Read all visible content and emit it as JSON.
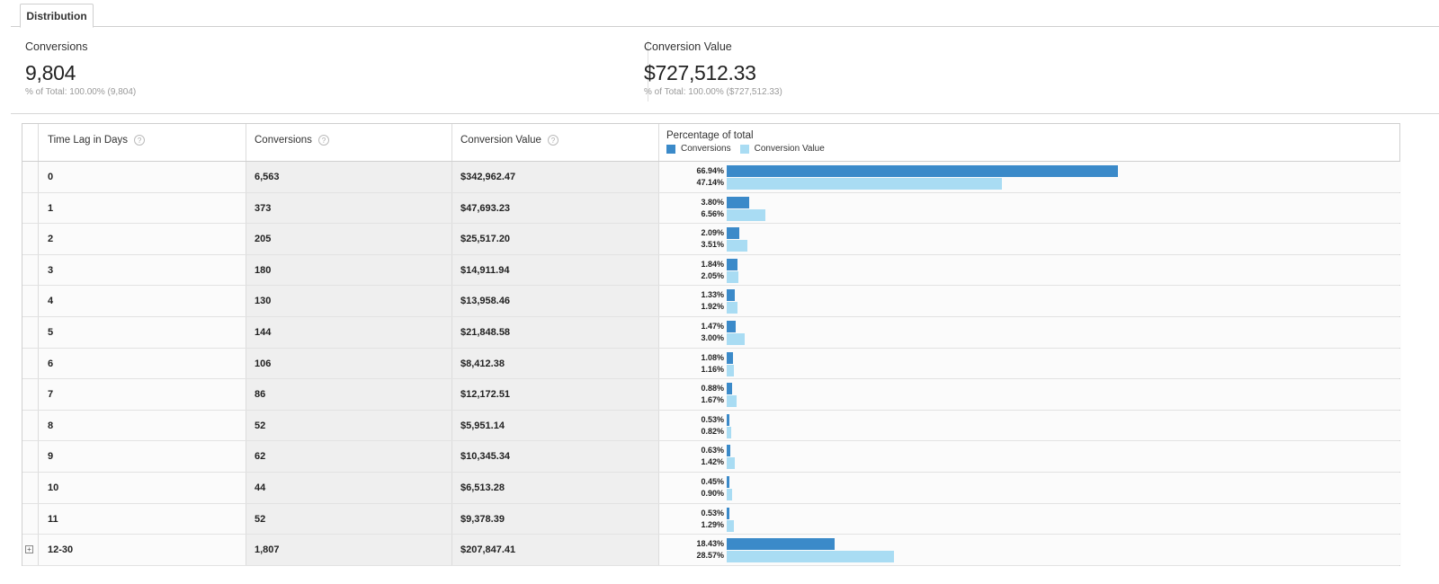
{
  "tabs": [
    {
      "label": "Distribution"
    }
  ],
  "summary": {
    "conversions": {
      "label": "Conversions",
      "value": "9,804",
      "sub": "% of Total: 100.00% (9,804)"
    },
    "conversion_value": {
      "label": "Conversion Value",
      "value": "$727,512.33",
      "sub": "% of Total: 100.00% ($727,512.33)"
    }
  },
  "table": {
    "headers": {
      "time_lag": "Time Lag in Days",
      "conversions": "Conversions",
      "conversion_value": "Conversion Value",
      "percentage": "Percentage of total",
      "legend_conversions": "Conversions",
      "legend_conversion_value": "Conversion Value",
      "help_glyph": "?"
    },
    "colors": {
      "conversions": "#3b8ac9",
      "conversion_value": "#a9dcf3"
    },
    "expand_glyph": "+",
    "rows": [
      {
        "lag": "0",
        "conversions": "6,563",
        "value": "$342,962.47",
        "pct_conv": "66.94%",
        "pct_val": "47.14%",
        "conv_pct": 66.94,
        "val_pct": 47.14
      },
      {
        "lag": "1",
        "conversions": "373",
        "value": "$47,693.23",
        "pct_conv": "3.80%",
        "pct_val": "6.56%",
        "conv_pct": 3.8,
        "val_pct": 6.56
      },
      {
        "lag": "2",
        "conversions": "205",
        "value": "$25,517.20",
        "pct_conv": "2.09%",
        "pct_val": "3.51%",
        "conv_pct": 2.09,
        "val_pct": 3.51
      },
      {
        "lag": "3",
        "conversions": "180",
        "value": "$14,911.94",
        "pct_conv": "1.84%",
        "pct_val": "2.05%",
        "conv_pct": 1.84,
        "val_pct": 2.05
      },
      {
        "lag": "4",
        "conversions": "130",
        "value": "$13,958.46",
        "pct_conv": "1.33%",
        "pct_val": "1.92%",
        "conv_pct": 1.33,
        "val_pct": 1.92
      },
      {
        "lag": "5",
        "conversions": "144",
        "value": "$21,848.58",
        "pct_conv": "1.47%",
        "pct_val": "3.00%",
        "conv_pct": 1.47,
        "val_pct": 3.0
      },
      {
        "lag": "6",
        "conversions": "106",
        "value": "$8,412.38",
        "pct_conv": "1.08%",
        "pct_val": "1.16%",
        "conv_pct": 1.08,
        "val_pct": 1.16
      },
      {
        "lag": "7",
        "conversions": "86",
        "value": "$12,172.51",
        "pct_conv": "0.88%",
        "pct_val": "1.67%",
        "conv_pct": 0.88,
        "val_pct": 1.67
      },
      {
        "lag": "8",
        "conversions": "52",
        "value": "$5,951.14",
        "pct_conv": "0.53%",
        "pct_val": "0.82%",
        "conv_pct": 0.53,
        "val_pct": 0.82
      },
      {
        "lag": "9",
        "conversions": "62",
        "value": "$10,345.34",
        "pct_conv": "0.63%",
        "pct_val": "1.42%",
        "conv_pct": 0.63,
        "val_pct": 1.42
      },
      {
        "lag": "10",
        "conversions": "44",
        "value": "$6,513.28",
        "pct_conv": "0.45%",
        "pct_val": "0.90%",
        "conv_pct": 0.45,
        "val_pct": 0.9
      },
      {
        "lag": "11",
        "conversions": "52",
        "value": "$9,378.39",
        "pct_conv": "0.53%",
        "pct_val": "1.29%",
        "conv_pct": 0.53,
        "val_pct": 1.29
      },
      {
        "lag": "12-30",
        "conversions": "1,807",
        "value": "$207,847.41",
        "pct_conv": "18.43%",
        "pct_val": "28.57%",
        "conv_pct": 18.43,
        "val_pct": 28.57,
        "expandable": true
      }
    ]
  }
}
